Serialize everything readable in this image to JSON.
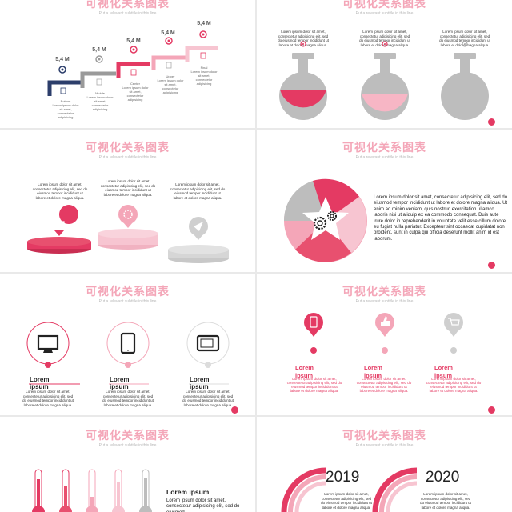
{
  "slide_title": "可视化关系图表",
  "slide_subtitle": "Put a relevant subtitle in this line",
  "lorem_short": "Lorem ipsum dolor sit amet, consectetur adipisicing elit, sed do eiusmod tempor incididunt ut labore et dolore magna aliqua.",
  "lorem_long": "Lorem ipsum dolor sit amet, consectetur adipisicing elit, sed do eiusmod tempor incididunt ut labore et dolore magna aliqua. Ut enim ad minim veniam, quis nostrud exercitation ullamco laboris nisi ut aliquip ex ea commodo consequat. Duis aute irure dolor in reprehenderit in voluptate velit esse cillum dolore eu fugiat nulla pariatur. Excepteur sint occaecat cupidatat non proident, sunt in culpa qui officia deserunt mollit anim id est laborum.",
  "lorem_tiny": "Lorem ipsum dolor sit amet, consectetur adipisicing",
  "colors": {
    "accent": "#e43a63",
    "pink": "#f4a6b8",
    "light_pink": "#f7c5d1",
    "gray": "#cccccc",
    "navy": "#2c3e6b"
  },
  "stairs": {
    "steps": [
      {
        "value": "5,4 M",
        "label": "Bottom"
      },
      {
        "value": "5,4 M",
        "label": "Middle"
      },
      {
        "value": "5,4 M",
        "label": "Center"
      },
      {
        "value": "5,4 M",
        "label": "Upper"
      },
      {
        "value": "5,4 M",
        "label": "Final"
      }
    ]
  },
  "lorem_word": "Lorem ipsum",
  "years": [
    "2019",
    "2020"
  ],
  "thermo_title": "Lorem ipsum",
  "thermo_text": "Lorem ipsum dolor sit amet, consectetur adipisicing elit, sed do eiusmod"
}
